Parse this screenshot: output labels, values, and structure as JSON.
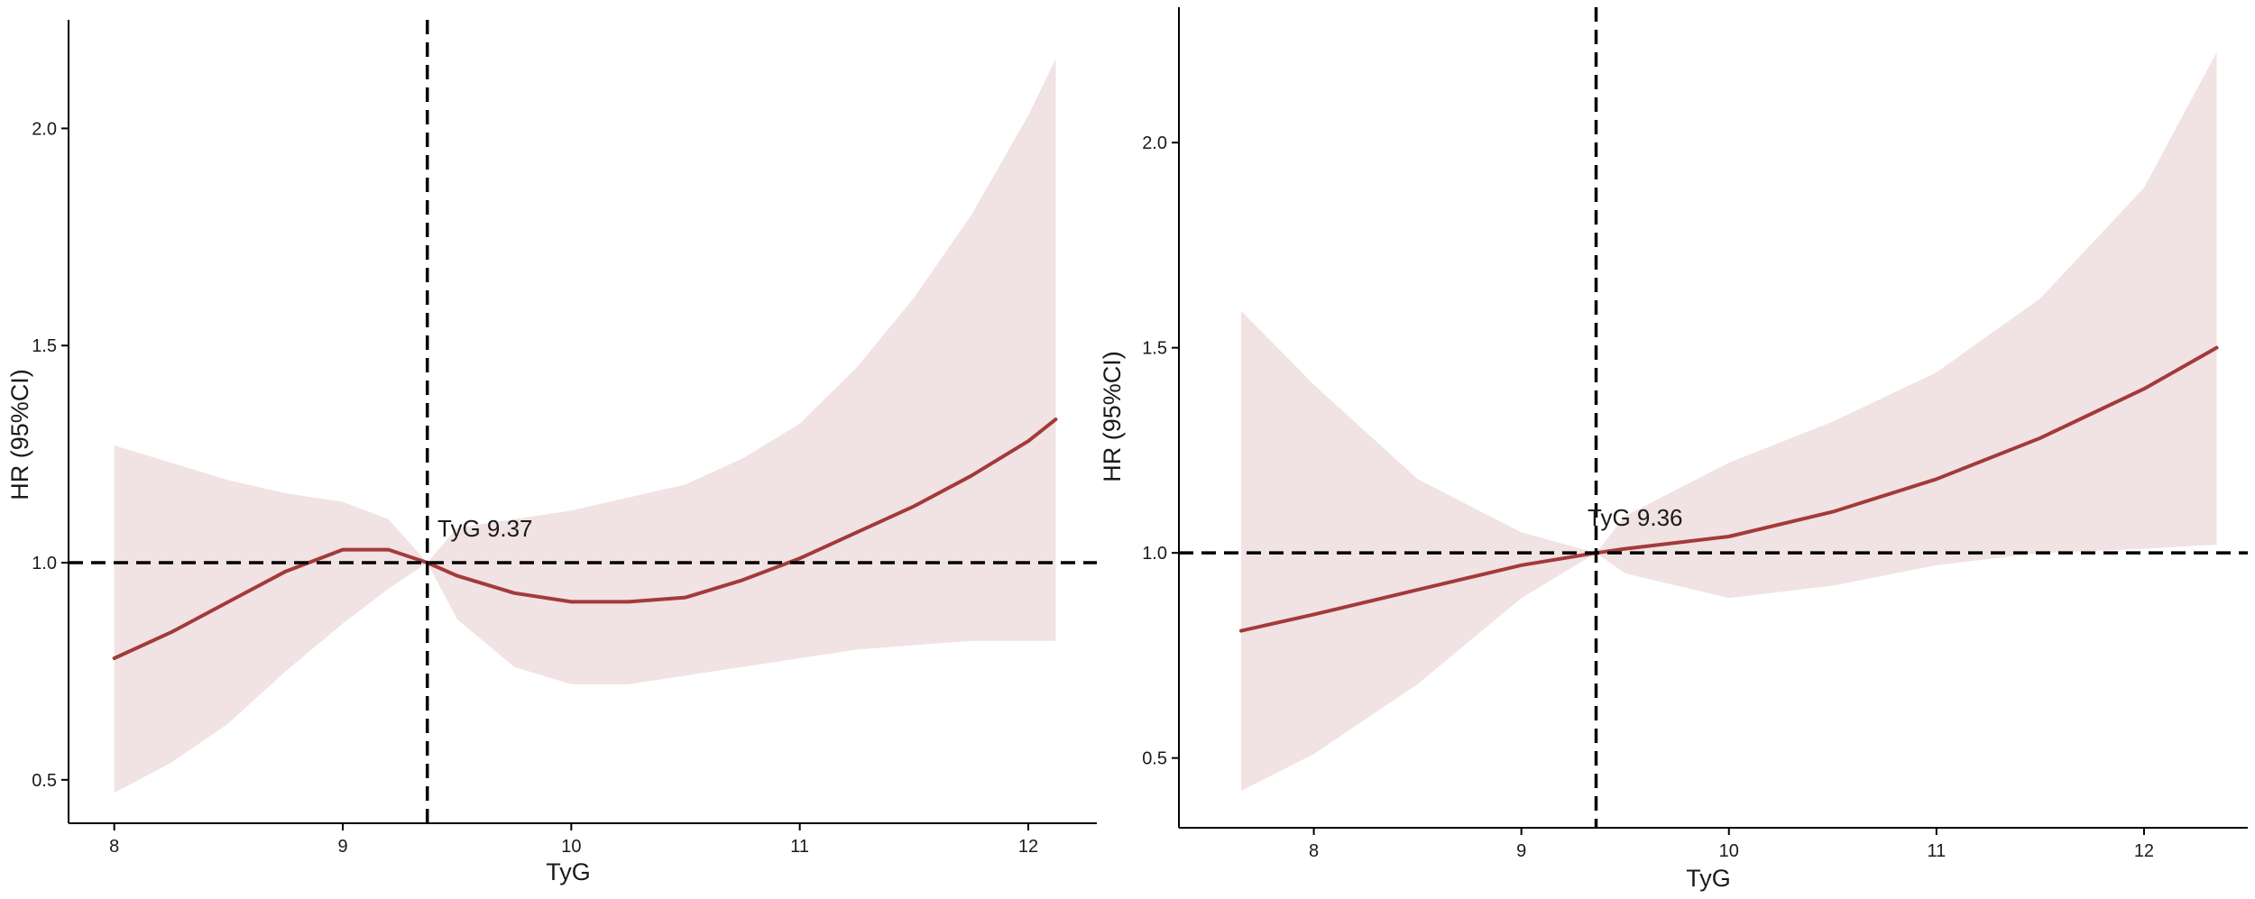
{
  "colors": {
    "curve": "#A33A3A",
    "ci_band": "#F1E2E3",
    "reference_lines": "#000000",
    "axis": "#000000"
  },
  "chart_data": [
    {
      "type": "line",
      "xlabel": "TyG",
      "ylabel": "HR (95%CI)",
      "xlim": [
        7.8,
        12.3
      ],
      "ylim": [
        0.4,
        2.25
      ],
      "xticks": [
        8,
        9,
        10,
        11,
        12
      ],
      "xtick_labels": [
        "8",
        "9",
        "10",
        "11",
        "12"
      ],
      "yticks": [
        0.5,
        1.0,
        1.5,
        2.0
      ],
      "ytick_labels": [
        "0.5",
        "1.0",
        "1.5",
        "2.0"
      ],
      "grid": false,
      "reference_lines": {
        "x": 9.37,
        "y": 1.0,
        "style": "dashed"
      },
      "annotation": {
        "text": "TyG 9.37",
        "x": 9.37,
        "y": 1.0
      },
      "series": [
        {
          "x": [
            8.0,
            8.25,
            8.5,
            8.75,
            9.0,
            9.2,
            9.37,
            9.5,
            9.75,
            10.0,
            10.25,
            10.5,
            10.75,
            11.0,
            11.25,
            11.5,
            11.75,
            12.0,
            12.12
          ],
          "y": [
            0.78,
            0.84,
            0.91,
            0.98,
            1.03,
            1.03,
            1.0,
            0.97,
            0.93,
            0.91,
            0.91,
            0.92,
            0.96,
            1.01,
            1.07,
            1.13,
            1.2,
            1.28,
            1.33
          ],
          "lower": [
            0.47,
            0.54,
            0.63,
            0.75,
            0.86,
            0.94,
            1.0,
            0.87,
            0.76,
            0.72,
            0.72,
            0.74,
            0.76,
            0.78,
            0.8,
            0.81,
            0.82,
            0.82,
            0.82
          ],
          "upper": [
            1.27,
            1.23,
            1.19,
            1.16,
            1.14,
            1.1,
            1.0,
            1.08,
            1.1,
            1.12,
            1.15,
            1.18,
            1.24,
            1.32,
            1.45,
            1.61,
            1.8,
            2.03,
            2.16
          ]
        }
      ]
    },
    {
      "type": "line",
      "xlabel": "TyG",
      "ylabel": "HR (95%CI)",
      "xlim": [
        7.35,
        12.5
      ],
      "ylim": [
        0.33,
        2.33
      ],
      "xticks": [
        8,
        9,
        10,
        11,
        12
      ],
      "xtick_labels": [
        "8",
        "9",
        "10",
        "11",
        "12"
      ],
      "yticks": [
        0.5,
        1.0,
        1.5,
        2.0
      ],
      "ytick_labels": [
        "0.5",
        "1.0",
        "1.5",
        "2.0"
      ],
      "grid": false,
      "reference_lines": {
        "x": 9.36,
        "y": 1.0,
        "style": "dashed"
      },
      "annotation": {
        "text": "TyG 9.36",
        "x": 9.36,
        "y": 1.0
      },
      "series": [
        {
          "x": [
            7.65,
            8.0,
            8.5,
            9.0,
            9.36,
            9.5,
            10.0,
            10.5,
            11.0,
            11.5,
            12.0,
            12.35
          ],
          "y": [
            0.81,
            0.85,
            0.91,
            0.97,
            1.0,
            1.01,
            1.04,
            1.1,
            1.18,
            1.28,
            1.4,
            1.5
          ],
          "lower": [
            0.42,
            0.51,
            0.68,
            0.89,
            1.0,
            0.95,
            0.89,
            0.92,
            0.97,
            1.0,
            1.01,
            1.02
          ],
          "upper": [
            1.59,
            1.41,
            1.18,
            1.05,
            1.0,
            1.09,
            1.22,
            1.32,
            1.44,
            1.62,
            1.89,
            2.22
          ]
        }
      ]
    }
  ]
}
